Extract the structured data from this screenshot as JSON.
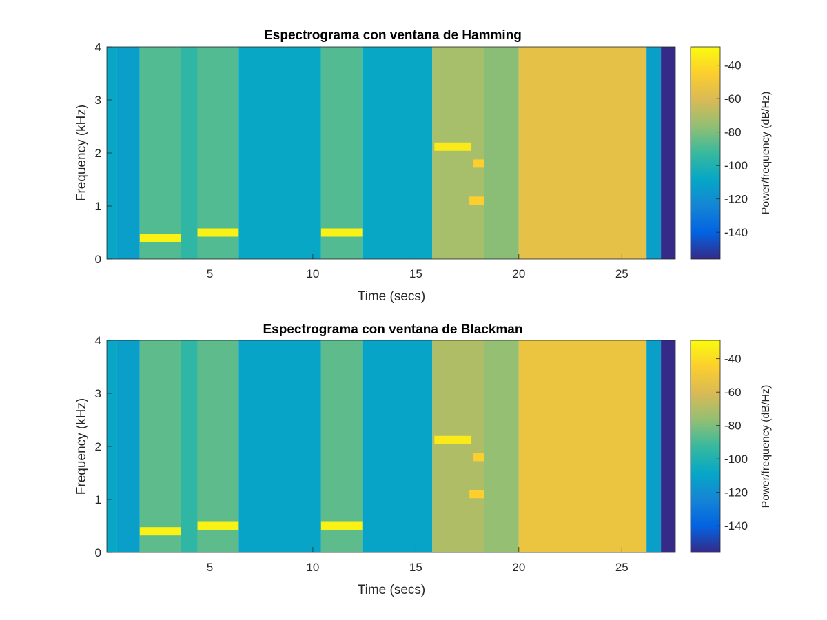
{
  "chart_data": [
    {
      "type": "heatmap",
      "title": "Espectrograma con ventana de Hamming",
      "xlabel": "Time (secs)",
      "ylabel": "Frequency (kHz)",
      "xlim": [
        0,
        27.6
      ],
      "ylim": [
        0,
        4
      ],
      "xticks": [
        5,
        10,
        15,
        20,
        25
      ],
      "yticks": [
        0,
        1,
        2,
        3,
        4
      ],
      "colorbar": {
        "label": "Power/frequency (dB/Hz)",
        "range": [
          -156,
          -29
        ],
        "ticks": [
          -40,
          -60,
          -80,
          -100,
          -120,
          -140
        ],
        "colormap": "parula"
      },
      "segments": [
        {
          "t0": 0.0,
          "t1": 0.5,
          "level": -108
        },
        {
          "t0": 0.5,
          "t1": 1.6,
          "level": -112
        },
        {
          "t0": 1.6,
          "t1": 3.6,
          "level": -88
        },
        {
          "t0": 3.6,
          "t1": 4.4,
          "level": -95
        },
        {
          "t0": 4.4,
          "t1": 6.4,
          "level": -88
        },
        {
          "t0": 6.4,
          "t1": 10.4,
          "level": -108
        },
        {
          "t0": 10.4,
          "t1": 12.4,
          "level": -88
        },
        {
          "t0": 12.4,
          "t1": 15.8,
          "level": -108
        },
        {
          "t0": 15.8,
          "t1": 18.3,
          "level": -72
        },
        {
          "t0": 18.3,
          "t1": 20.0,
          "level": -78
        },
        {
          "t0": 20.0,
          "t1": 26.2,
          "level": -55
        },
        {
          "t0": 26.2,
          "t1": 26.9,
          "level": -112
        },
        {
          "t0": 26.9,
          "t1": 27.6,
          "level": -156
        }
      ],
      "tones": [
        {
          "t0": 1.6,
          "t1": 3.6,
          "f": 0.4,
          "level": -32
        },
        {
          "t0": 4.4,
          "t1": 6.4,
          "f": 0.5,
          "level": -32
        },
        {
          "t0": 10.4,
          "t1": 12.4,
          "f": 0.5,
          "level": -32
        },
        {
          "t0": 15.9,
          "t1": 17.7,
          "f": 2.12,
          "level": -35
        },
        {
          "t0": 17.6,
          "t1": 18.3,
          "f": 1.1,
          "level": -45
        },
        {
          "t0": 17.8,
          "t1": 18.3,
          "f": 1.8,
          "level": -45
        }
      ]
    },
    {
      "type": "heatmap",
      "title": "Espectrograma con ventana de Blackman",
      "xlabel": "Time (secs)",
      "ylabel": "Frequency (kHz)",
      "xlim": [
        0,
        27.6
      ],
      "ylim": [
        0,
        4
      ],
      "xticks": [
        5,
        10,
        15,
        20,
        25
      ],
      "yticks": [
        0,
        1,
        2,
        3,
        4
      ],
      "colorbar": {
        "label": "Power/frequency (dB/Hz)",
        "range": [
          -156,
          -29
        ],
        "ticks": [
          -40,
          -60,
          -80,
          -100,
          -120,
          -140
        ],
        "colormap": "parula"
      },
      "segments": [
        {
          "t0": 0.0,
          "t1": 0.5,
          "level": -108
        },
        {
          "t0": 0.5,
          "t1": 1.6,
          "level": -112
        },
        {
          "t0": 1.6,
          "t1": 3.6,
          "level": -86
        },
        {
          "t0": 3.6,
          "t1": 4.4,
          "level": -95
        },
        {
          "t0": 4.4,
          "t1": 6.4,
          "level": -86
        },
        {
          "t0": 6.4,
          "t1": 10.4,
          "level": -110
        },
        {
          "t0": 10.4,
          "t1": 12.4,
          "level": -86
        },
        {
          "t0": 12.4,
          "t1": 15.8,
          "level": -110
        },
        {
          "t0": 15.8,
          "t1": 18.3,
          "level": -70
        },
        {
          "t0": 18.3,
          "t1": 20.0,
          "level": -76
        },
        {
          "t0": 20.0,
          "t1": 26.2,
          "level": -52
        },
        {
          "t0": 26.2,
          "t1": 26.9,
          "level": -112
        },
        {
          "t0": 26.9,
          "t1": 27.6,
          "level": -156
        }
      ],
      "tones": [
        {
          "t0": 1.6,
          "t1": 3.6,
          "f": 0.4,
          "level": -32
        },
        {
          "t0": 4.4,
          "t1": 6.4,
          "f": 0.5,
          "level": -32
        },
        {
          "t0": 10.4,
          "t1": 12.4,
          "f": 0.5,
          "level": -32
        },
        {
          "t0": 15.9,
          "t1": 17.7,
          "f": 2.12,
          "level": -35
        },
        {
          "t0": 17.6,
          "t1": 18.3,
          "f": 1.1,
          "level": -45
        },
        {
          "t0": 17.8,
          "t1": 18.3,
          "f": 1.8,
          "level": -45
        }
      ]
    }
  ]
}
